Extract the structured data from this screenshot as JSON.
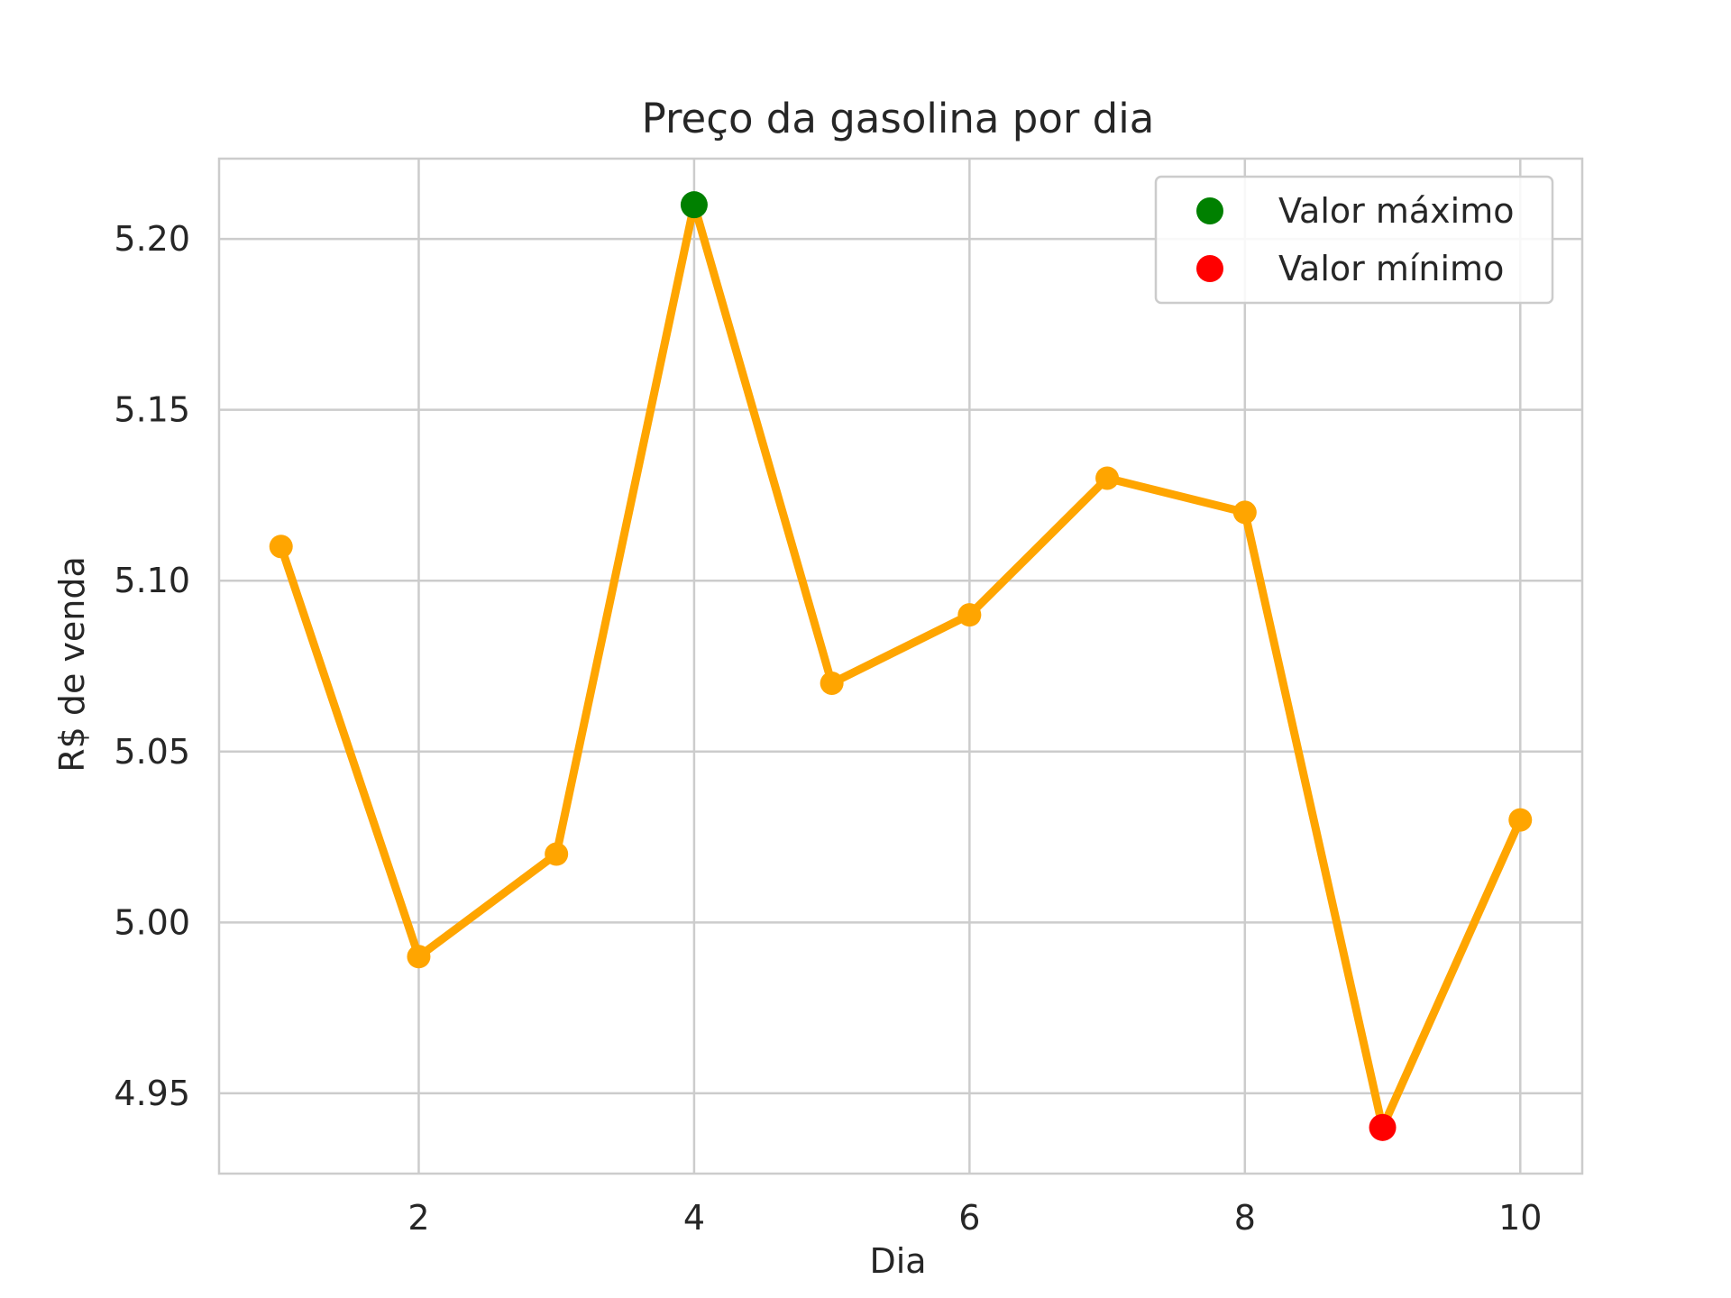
{
  "chart_data": {
    "type": "line",
    "title": "Preço da gasolina por dia",
    "xlabel": "Dia",
    "ylabel": "R$ de venda",
    "x": [
      1,
      2,
      3,
      4,
      5,
      6,
      7,
      8,
      9,
      10
    ],
    "series": [
      {
        "values": [
          5.11,
          4.99,
          5.02,
          5.21,
          5.07,
          5.09,
          5.13,
          5.12,
          4.94,
          5.03
        ],
        "color": "#ffa500",
        "marker": "circle"
      }
    ],
    "highlights": [
      {
        "name": "Valor máximo",
        "x": 4,
        "y": 5.21,
        "color": "#008000"
      },
      {
        "name": "Valor mínimo",
        "x": 9,
        "y": 4.94,
        "color": "#ff0000"
      }
    ],
    "xlim": [
      0.55,
      10.45
    ],
    "ylim": [
      4.9265,
      5.2235
    ],
    "xticks": [
      2,
      4,
      6,
      8,
      10
    ],
    "xtick_labels": [
      "2",
      "4",
      "6",
      "8",
      "10"
    ],
    "yticks": [
      4.95,
      5.0,
      5.05,
      5.1,
      5.15,
      5.2
    ],
    "ytick_labels": [
      "4.95",
      "5.00",
      "5.05",
      "5.10",
      "5.15",
      "5.20"
    ],
    "grid": true,
    "legend_position": "top-right",
    "grid_color": "#cccccc",
    "text_color": "#262626"
  }
}
